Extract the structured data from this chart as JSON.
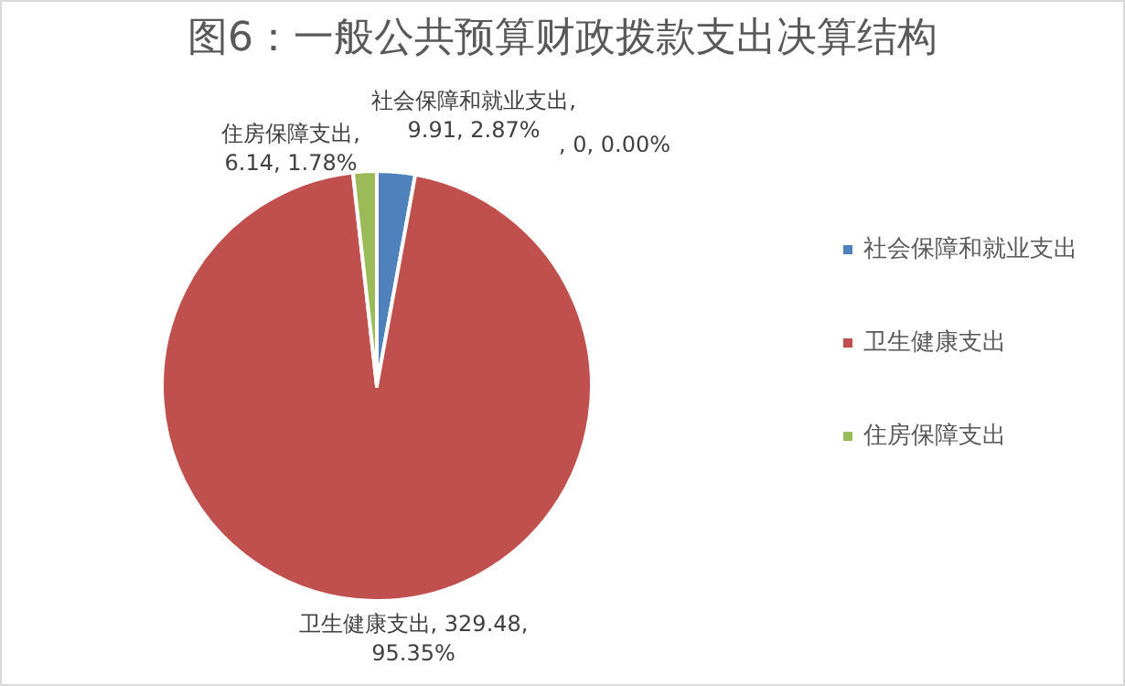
{
  "chart_data": {
    "type": "pie",
    "title": "图6：一般公共预算财政拨款支出决算结构",
    "categories": [
      "社会保障和就业支出",
      "卫生健康支出",
      "住房保障支出",
      null
    ],
    "values": [
      9.91,
      329.48,
      6.14,
      0
    ],
    "colors": [
      "#4f81bd",
      "#c0504d",
      "#9bbb59",
      "#8064a2"
    ],
    "value_labels": [
      "社会保障和就业支出,\n9.91, 2.87%",
      "卫生健康支出, 329.48,\n95.35%",
      "住房保障支出,\n6.14, 1.78%",
      ", 0, 0.00%"
    ],
    "legend": "right"
  }
}
